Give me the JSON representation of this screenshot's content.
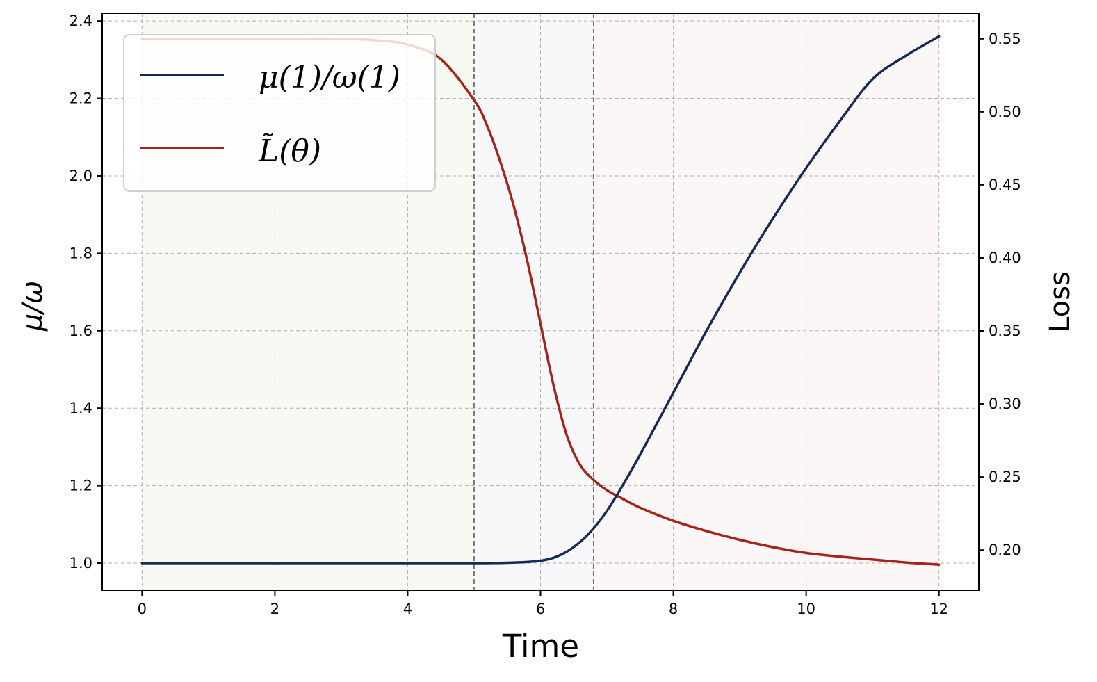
{
  "chart_data": {
    "type": "line",
    "xlabel": "Time",
    "ylabel_left": "μ/ω",
    "ylabel_right": "Loss",
    "xlim": [
      -0.6,
      12.6
    ],
    "ylim_left": [
      0.93,
      2.42
    ],
    "ylim_right": [
      0.1725,
      0.5675
    ],
    "x_ticks": [
      0,
      2,
      4,
      6,
      8,
      10,
      12
    ],
    "x_tick_labels": [
      "0",
      "2",
      "4",
      "6",
      "8",
      "10",
      "12"
    ],
    "y_left_ticks": [
      1.0,
      1.2,
      1.4,
      1.6,
      1.8,
      2.0,
      2.2,
      2.4
    ],
    "y_left_tick_labels": [
      "1.0",
      "1.2",
      "1.4",
      "1.6",
      "1.8",
      "2.0",
      "2.2",
      "2.4"
    ],
    "y_right_ticks": [
      0.2,
      0.25,
      0.3,
      0.35,
      0.4,
      0.45,
      0.5,
      0.55
    ],
    "y_right_tick_labels": [
      "0.20",
      "0.25",
      "0.30",
      "0.35",
      "0.40",
      "0.45",
      "0.50",
      "0.55"
    ],
    "grid": true,
    "legend_position": "top-left",
    "phase_regions": [
      {
        "x0": 0,
        "x1": 5.0,
        "color": "#f7faf2"
      },
      {
        "x0": 5.0,
        "x1": 6.8,
        "color": "#f8f8fa"
      },
      {
        "x0": 6.8,
        "x1": 12.0,
        "color": "#fcf7f7"
      }
    ],
    "vlines": [
      5.0,
      6.8
    ],
    "series": [
      {
        "name": "μ(1)/ω(1)",
        "axis": "left",
        "color": "#152a5a",
        "x": [
          0,
          1,
          2,
          3,
          4,
          5,
          5.5,
          5.8,
          6.0,
          6.2,
          6.4,
          6.6,
          6.8,
          7.0,
          7.2,
          7.5,
          8.0,
          8.5,
          9.0,
          9.5,
          10.0,
          10.5,
          11.0,
          11.5,
          12.0
        ],
        "values": [
          1.0,
          1.0,
          1.0,
          1.0,
          1.0,
          1.0,
          1.001,
          1.003,
          1.006,
          1.014,
          1.03,
          1.055,
          1.09,
          1.135,
          1.19,
          1.28,
          1.44,
          1.6,
          1.75,
          1.89,
          2.02,
          2.14,
          2.25,
          2.31,
          2.36
        ]
      },
      {
        "name": "L̃(θ)",
        "axis": "right",
        "color": "#a6231a",
        "x": [
          0,
          1,
          2,
          3,
          3.5,
          4.0,
          4.5,
          5.0,
          5.2,
          5.4,
          5.6,
          5.8,
          6.0,
          6.2,
          6.4,
          6.6,
          6.8,
          7.0,
          7.2,
          7.5,
          8.0,
          8.5,
          9.0,
          9.5,
          10.0,
          10.5,
          11.0,
          11.5,
          12.0
        ],
        "values": [
          0.55,
          0.55,
          0.55,
          0.55,
          0.549,
          0.546,
          0.536,
          0.508,
          0.49,
          0.465,
          0.435,
          0.398,
          0.355,
          0.312,
          0.278,
          0.258,
          0.248,
          0.241,
          0.236,
          0.229,
          0.22,
          0.213,
          0.207,
          0.202,
          0.198,
          0.1955,
          0.1935,
          0.1915,
          0.19
        ]
      }
    ]
  }
}
